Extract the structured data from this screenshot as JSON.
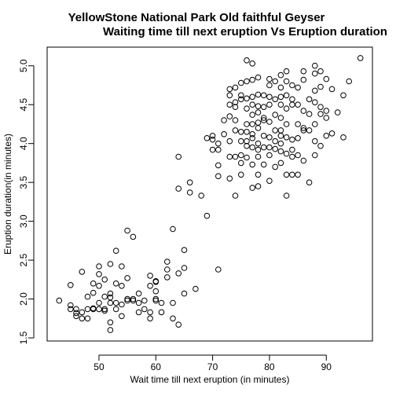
{
  "chart_data": {
    "type": "scatter",
    "title_line1": "YellowStone National Park Old faithful Geyser",
    "title_line2": "Waiting time till next eruption Vs Eruption duration",
    "xlabel": "Wait time till next eruption (in minutes)",
    "ylabel": "Eruption duration(in minutes)",
    "xlim": [
      43,
      96
    ],
    "ylim": [
      1.6,
      5.1
    ],
    "xticks": [
      50,
      60,
      70,
      80,
      90
    ],
    "yticks": [
      1.5,
      2.0,
      2.5,
      3.0,
      3.5,
      4.0,
      4.5,
      5.0
    ],
    "xtick_labels": [
      "50",
      "60",
      "70",
      "80",
      "90"
    ],
    "ytick_labels": [
      "1.5",
      "2.0",
      "2.5",
      "3.0",
      "3.5",
      "4.0",
      "4.5",
      "5.0"
    ],
    "grid": false,
    "legend": "none",
    "series": [
      {
        "points": [
          [
            43,
            1.98
          ],
          [
            45,
            1.92
          ],
          [
            45,
            1.87
          ],
          [
            45,
            2.18
          ],
          [
            46,
            1.87
          ],
          [
            46,
            1.82
          ],
          [
            46,
            1.78
          ],
          [
            47,
            1.75
          ],
          [
            47,
            1.83
          ],
          [
            47,
            2.35
          ],
          [
            48,
            1.87
          ],
          [
            48,
            1.75
          ],
          [
            48,
            2.03
          ],
          [
            49,
            1.87
          ],
          [
            49,
            2.08
          ],
          [
            49,
            1.88
          ],
          [
            49,
            2.2
          ],
          [
            50,
            1.87
          ],
          [
            50,
            2.42
          ],
          [
            50,
            2.32
          ],
          [
            50,
            2.17
          ],
          [
            50,
            1.95
          ],
          [
            51,
            1.85
          ],
          [
            51,
            2.03
          ],
          [
            51,
            2.25
          ],
          [
            51,
            1.87
          ],
          [
            52,
            1.6
          ],
          [
            52,
            1.95
          ],
          [
            52,
            2.02
          ],
          [
            52,
            1.7
          ],
          [
            52,
            2.07
          ],
          [
            52,
            2.45
          ],
          [
            53,
            1.95
          ],
          [
            53,
            2.62
          ],
          [
            53,
            2.2
          ],
          [
            53,
            1.87
          ],
          [
            54,
            2.42
          ],
          [
            54,
            1.78
          ],
          [
            54,
            2.17
          ],
          [
            54,
            1.93
          ],
          [
            55,
            2.88
          ],
          [
            55,
            2.27
          ],
          [
            55,
            2.0
          ],
          [
            55,
            1.98
          ],
          [
            56,
            2.8
          ],
          [
            56,
            1.98
          ],
          [
            56,
            2.0
          ],
          [
            57,
            1.83
          ],
          [
            57,
            2.07
          ],
          [
            57,
            1.95
          ],
          [
            58,
            1.87
          ],
          [
            58,
            1.98
          ],
          [
            59,
            2.3
          ],
          [
            59,
            2.17
          ],
          [
            59,
            1.83
          ],
          [
            59,
            1.75
          ],
          [
            60,
            2.23
          ],
          [
            60,
            1.98
          ],
          [
            60,
            2.22
          ],
          [
            60,
            2.0
          ],
          [
            60,
            2.1
          ],
          [
            61,
            1.83
          ],
          [
            61,
            1.95
          ],
          [
            62,
            2.48
          ],
          [
            62,
            2.28
          ],
          [
            62,
            2.38
          ],
          [
            63,
            2.9
          ],
          [
            63,
            1.75
          ],
          [
            63,
            1.95
          ],
          [
            64,
            1.67
          ],
          [
            64,
            2.33
          ],
          [
            64,
            3.42
          ],
          [
            64,
            3.83
          ],
          [
            65,
            2.07
          ],
          [
            65,
            2.63
          ],
          [
            65,
            2.4
          ],
          [
            66,
            3.37
          ],
          [
            66,
            3.5
          ],
          [
            67,
            2.13
          ],
          [
            68,
            3.33
          ],
          [
            69,
            3.07
          ],
          [
            69,
            4.07
          ],
          [
            70,
            4.1
          ],
          [
            70,
            3.92
          ],
          [
            70,
            4.05
          ],
          [
            71,
            3.72
          ],
          [
            71,
            3.58
          ],
          [
            71,
            2.38
          ],
          [
            71,
            4.0
          ],
          [
            71,
            3.92
          ],
          [
            72,
            4.3
          ],
          [
            72,
            4.12
          ],
          [
            73,
            3.83
          ],
          [
            73,
            3.55
          ],
          [
            73,
            4.35
          ],
          [
            73,
            4.5
          ],
          [
            73,
            4.7
          ],
          [
            73,
            4.62
          ],
          [
            73,
            4.03
          ],
          [
            74,
            3.33
          ],
          [
            74,
            3.83
          ],
          [
            74,
            4.17
          ],
          [
            74,
            4.47
          ],
          [
            74,
            4.53
          ],
          [
            74,
            4.72
          ],
          [
            74,
            4.3
          ],
          [
            75,
            3.75
          ],
          [
            75,
            3.85
          ],
          [
            75,
            4.03
          ],
          [
            75,
            4.15
          ],
          [
            75,
            4.57
          ],
          [
            75,
            4.78
          ],
          [
            75,
            4.62
          ],
          [
            75,
            3.6
          ],
          [
            76,
            3.82
          ],
          [
            76,
            3.97
          ],
          [
            76,
            4.25
          ],
          [
            76,
            4.45
          ],
          [
            76,
            4.58
          ],
          [
            76,
            4.8
          ],
          [
            76,
            4.15
          ],
          [
            76,
            5.07
          ],
          [
            76,
            4.03
          ],
          [
            77,
            3.43
          ],
          [
            77,
            3.95
          ],
          [
            77,
            4.12
          ],
          [
            77,
            4.37
          ],
          [
            77,
            4.5
          ],
          [
            77,
            4.6
          ],
          [
            77,
            4.82
          ],
          [
            77,
            5.03
          ],
          [
            77,
            4.25
          ],
          [
            77,
            3.73
          ],
          [
            77,
            4.07
          ],
          [
            78,
            3.45
          ],
          [
            78,
            3.83
          ],
          [
            78,
            4.0
          ],
          [
            78,
            4.2
          ],
          [
            78,
            4.4
          ],
          [
            78,
            4.63
          ],
          [
            78,
            4.85
          ],
          [
            78,
            4.48
          ],
          [
            78,
            3.92
          ],
          [
            78,
            4.27
          ],
          [
            78,
            3.6
          ],
          [
            79,
            3.73
          ],
          [
            79,
            3.95
          ],
          [
            79,
            4.1
          ],
          [
            79,
            4.33
          ],
          [
            79,
            4.47
          ],
          [
            79,
            4.62
          ],
          [
            79,
            4.3
          ],
          [
            80,
            3.52
          ],
          [
            80,
            3.85
          ],
          [
            80,
            4.08
          ],
          [
            80,
            4.28
          ],
          [
            80,
            4.5
          ],
          [
            80,
            4.75
          ],
          [
            80,
            4.83
          ],
          [
            80,
            3.95
          ],
          [
            80,
            4.6
          ],
          [
            81,
            3.7
          ],
          [
            81,
            3.93
          ],
          [
            81,
            4.17
          ],
          [
            81,
            4.37
          ],
          [
            81,
            4.57
          ],
          [
            81,
            4.8
          ],
          [
            81,
            4.03
          ],
          [
            82,
            3.75
          ],
          [
            82,
            4.0
          ],
          [
            82,
            4.17
          ],
          [
            82,
            4.33
          ],
          [
            82,
            4.5
          ],
          [
            82,
            4.72
          ],
          [
            82,
            4.88
          ],
          [
            82,
            3.9
          ],
          [
            82,
            4.1
          ],
          [
            82,
            4.6
          ],
          [
            83,
            3.33
          ],
          [
            83,
            3.6
          ],
          [
            83,
            3.87
          ],
          [
            83,
            4.08
          ],
          [
            83,
            4.25
          ],
          [
            83,
            4.45
          ],
          [
            83,
            4.62
          ],
          [
            83,
            4.8
          ],
          [
            83,
            4.93
          ],
          [
            84,
            3.6
          ],
          [
            84,
            3.92
          ],
          [
            84,
            4.05
          ],
          [
            84,
            4.5
          ],
          [
            84,
            4.57
          ],
          [
            84,
            4.75
          ],
          [
            84,
            3.83
          ],
          [
            85,
            3.6
          ],
          [
            85,
            3.85
          ],
          [
            85,
            4.07
          ],
          [
            85,
            4.25
          ],
          [
            85,
            4.5
          ],
          [
            85,
            4.72
          ],
          [
            86,
            3.78
          ],
          [
            86,
            4.17
          ],
          [
            86,
            4.42
          ],
          [
            86,
            4.82
          ],
          [
            86,
            4.93
          ],
          [
            86,
            4.2
          ],
          [
            87,
            3.5
          ],
          [
            87,
            4.17
          ],
          [
            87,
            4.38
          ],
          [
            87,
            4.57
          ],
          [
            88,
            3.85
          ],
          [
            88,
            4.03
          ],
          [
            88,
            4.25
          ],
          [
            88,
            4.53
          ],
          [
            88,
            4.68
          ],
          [
            88,
            4.9
          ],
          [
            88,
            5.0
          ],
          [
            89,
            3.97
          ],
          [
            89,
            4.38
          ],
          [
            89,
            4.73
          ],
          [
            89,
            4.93
          ],
          [
            89,
            4.47
          ],
          [
            90,
            4.33
          ],
          [
            90,
            4.42
          ],
          [
            90,
            4.83
          ],
          [
            90,
            4.1
          ],
          [
            91,
            4.13
          ],
          [
            91,
            4.7
          ],
          [
            92,
            4.4
          ],
          [
            93,
            4.62
          ],
          [
            93,
            4.08
          ],
          [
            94,
            4.8
          ],
          [
            96,
            5.1
          ]
        ]
      }
    ]
  }
}
